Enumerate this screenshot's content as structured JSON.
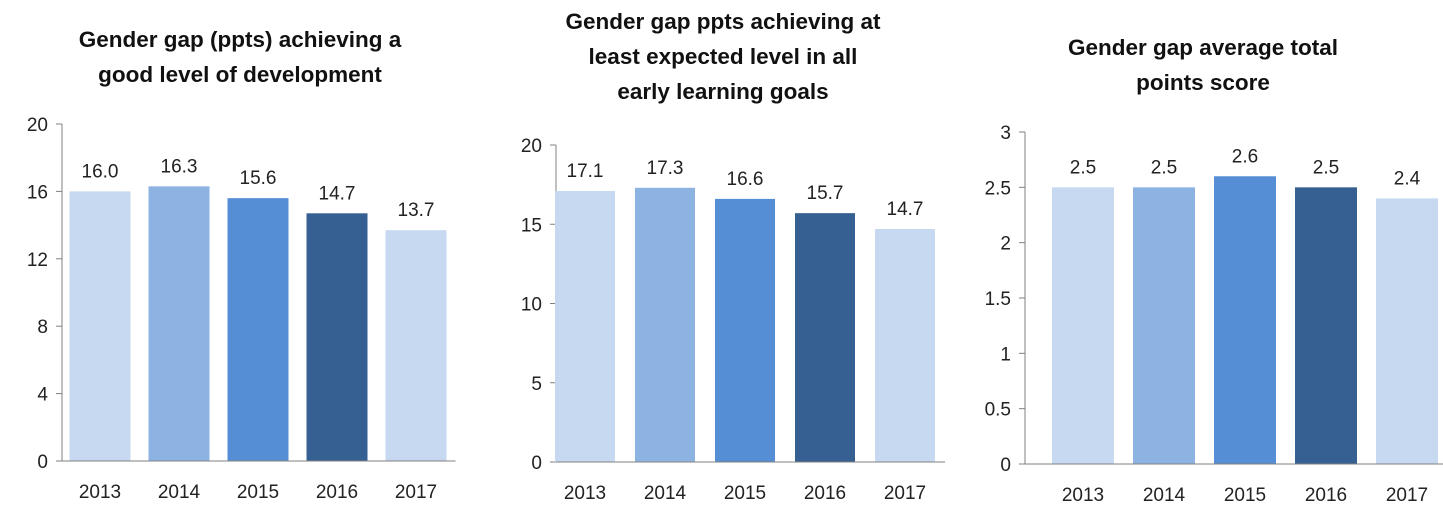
{
  "colors": [
    "#c6d9f1",
    "#8db3e2",
    "#558ed5",
    "#366092",
    "#c6d9f1"
  ],
  "chart_data": [
    {
      "type": "bar",
      "title": "Gender gap (ppts) achieving a\ngood level of development",
      "categories": [
        "2013",
        "2014",
        "2015",
        "2016",
        "2017"
      ],
      "values": [
        16.0,
        16.3,
        15.6,
        14.7,
        13.7
      ],
      "value_labels": [
        "16.0",
        "16.3",
        "15.6",
        "14.7",
        "13.7"
      ],
      "yticks": [
        "0",
        "4",
        "8",
        "12",
        "16",
        "20"
      ],
      "ylim": [
        0,
        20
      ],
      "grid": false,
      "legend": "none"
    },
    {
      "type": "bar",
      "title": "Gender gap ppts achieving at\nleast expected level in all\nearly learning goals",
      "categories": [
        "2013",
        "2014",
        "2015",
        "2016",
        "2017"
      ],
      "values": [
        17.1,
        17.3,
        16.6,
        15.7,
        14.7
      ],
      "value_labels": [
        "17.1",
        "17.3",
        "16.6",
        "15.7",
        "14.7"
      ],
      "yticks": [
        "0",
        "5",
        "10",
        "15",
        "20"
      ],
      "ylim": [
        0,
        20
      ],
      "grid": false,
      "legend": "none"
    },
    {
      "type": "bar",
      "title": "Gender gap average total\npoints score",
      "categories": [
        "2013",
        "2014",
        "2015",
        "2016",
        "2017"
      ],
      "values": [
        2.5,
        2.5,
        2.6,
        2.5,
        2.4
      ],
      "value_labels": [
        "2.5",
        "2.5",
        "2.6",
        "2.5",
        "2.4"
      ],
      "yticks": [
        "0",
        "0.5",
        "1",
        "1.5",
        "2",
        "2.5",
        "3"
      ],
      "ylim": [
        0,
        3
      ],
      "grid": false,
      "legend": "none"
    }
  ]
}
